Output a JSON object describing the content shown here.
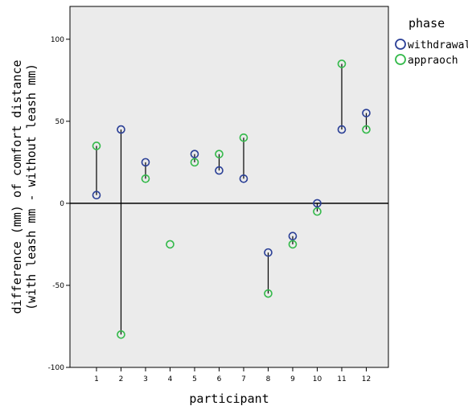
{
  "chart_data": {
    "type": "scatter",
    "title": "",
    "xlabel": "participant",
    "ylabel_line1": "difference (mm) of comfort distance",
    "ylabel_line2": "(with leash mm - without leash mm)",
    "categories": [
      "1",
      "2",
      "3",
      "4",
      "5",
      "6",
      "7",
      "8",
      "9",
      "10",
      "11",
      "12"
    ],
    "ylim": [
      -100,
      120
    ],
    "yticks": [
      -100,
      -50,
      0,
      50,
      100
    ],
    "reference_line_y": 0,
    "legend": {
      "title": "phase",
      "position": "top-right"
    },
    "series": [
      {
        "name": "withdrawal",
        "color": "#2a3f96",
        "values": [
          5,
          45,
          25,
          null,
          30,
          20,
          15,
          -30,
          -20,
          0,
          45,
          55
        ]
      },
      {
        "name": "appraoch",
        "color": "#33b94a",
        "values": [
          35,
          -80,
          15,
          -25,
          25,
          30,
          40,
          -55,
          -25,
          -5,
          85,
          45
        ]
      }
    ],
    "background_color": "#ebebeb",
    "connector_color": "#000000"
  }
}
